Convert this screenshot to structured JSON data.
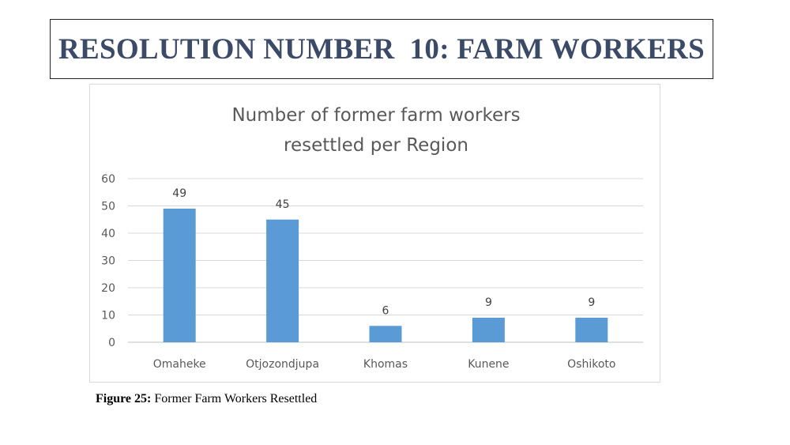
{
  "slide": {
    "title": "RESOLUTION NUMBER  10: FARM WORKERS",
    "caption_label": "Figure 25:",
    "caption_text": " Former Farm Workers Resettled"
  },
  "chart_data": {
    "type": "bar",
    "title_line1": "Number of former farm workers",
    "title_line2": "resettled per Region",
    "categories": [
      "Omaheke",
      "Otjozondjupa",
      "Khomas",
      "Kunene",
      "Oshikoto"
    ],
    "values": [
      49,
      45,
      6,
      9,
      9
    ],
    "data_labels": [
      "49",
      "45",
      "6",
      "9",
      "9"
    ],
    "ylim": [
      0,
      60
    ],
    "yticks": [
      "0",
      "10",
      "20",
      "30",
      "40",
      "50",
      "60"
    ],
    "bar_color": "#5b9bd5",
    "grid": true,
    "legend": "none"
  }
}
